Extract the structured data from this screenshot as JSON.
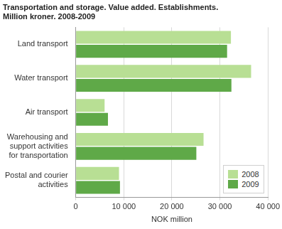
{
  "chart_data": {
    "type": "bar",
    "title": [
      "Transportation and storage. Value added. Establishments.",
      "Million kroner. 2008-2009"
    ],
    "orientation": "horizontal",
    "categories": [
      "Land transport",
      "Water transport",
      "Air transport",
      "Warehousing and support activities for transportation",
      "Postal and courier activities"
    ],
    "series": [
      {
        "name": "2008",
        "color": "#b8df94",
        "values": [
          32300,
          36500,
          6000,
          26600,
          9000
        ]
      },
      {
        "name": "2009",
        "color": "#5fa948",
        "values": [
          31500,
          32400,
          6700,
          25100,
          9200
        ]
      }
    ],
    "x_label": "NOK million",
    "xlim": [
      0,
      40000
    ],
    "xticks": [
      0,
      {
        "value": 10000,
        "label": "10 000"
      },
      {
        "value": 20000,
        "label": "20 000"
      },
      {
        "value": 30000,
        "label": "30 000"
      },
      {
        "value": 40000,
        "label": "40 000"
      }
    ],
    "grid": true,
    "legend": "bottom right"
  }
}
